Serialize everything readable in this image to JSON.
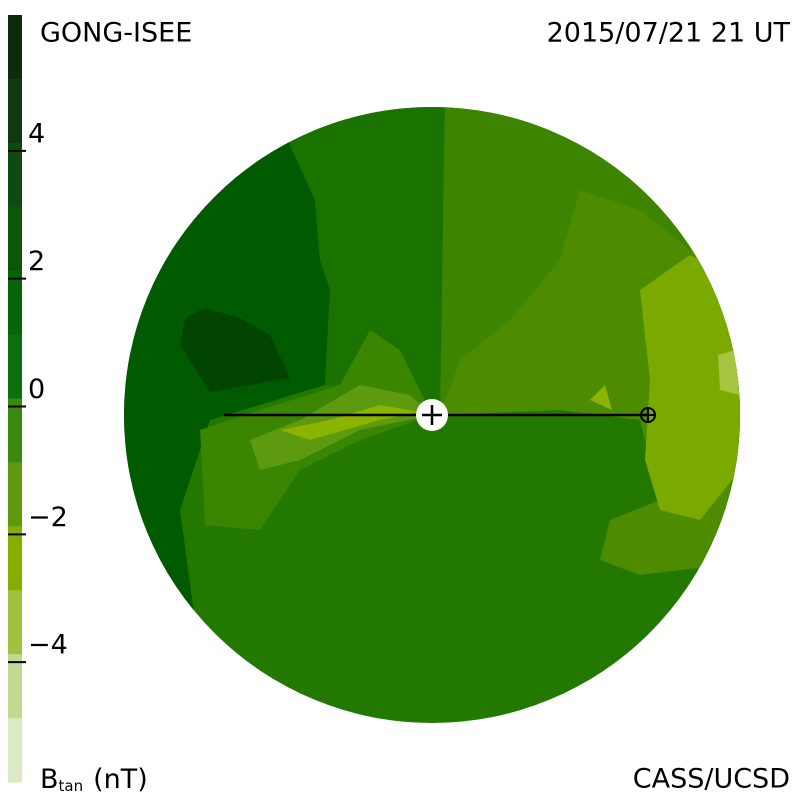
{
  "header": {
    "title": "GONG-ISEE",
    "time": "2015/07/21 21 UT",
    "credit": "CASS/UCSD"
  },
  "colorbar": {
    "label": "B",
    "label_sub": "tan",
    "unit": "(nT)",
    "lim": [
      -6,
      6
    ],
    "ticks": [
      {
        "value": 4,
        "label": "4"
      },
      {
        "value": 2,
        "label": "2"
      },
      {
        "value": 0,
        "label": "0"
      },
      {
        "value": -2,
        "label": "−2"
      },
      {
        "value": -4,
        "label": "−4"
      }
    ],
    "colors": [
      "#0b2b0b",
      "#0e3a0e",
      "#0f4a0f",
      "#0c560c",
      "#086408",
      "#0d7010",
      "#3a8a10",
      "#5e9a10",
      "#86ad00",
      "#a0c040",
      "#c4d890",
      "#dde8c4"
    ]
  }
}
